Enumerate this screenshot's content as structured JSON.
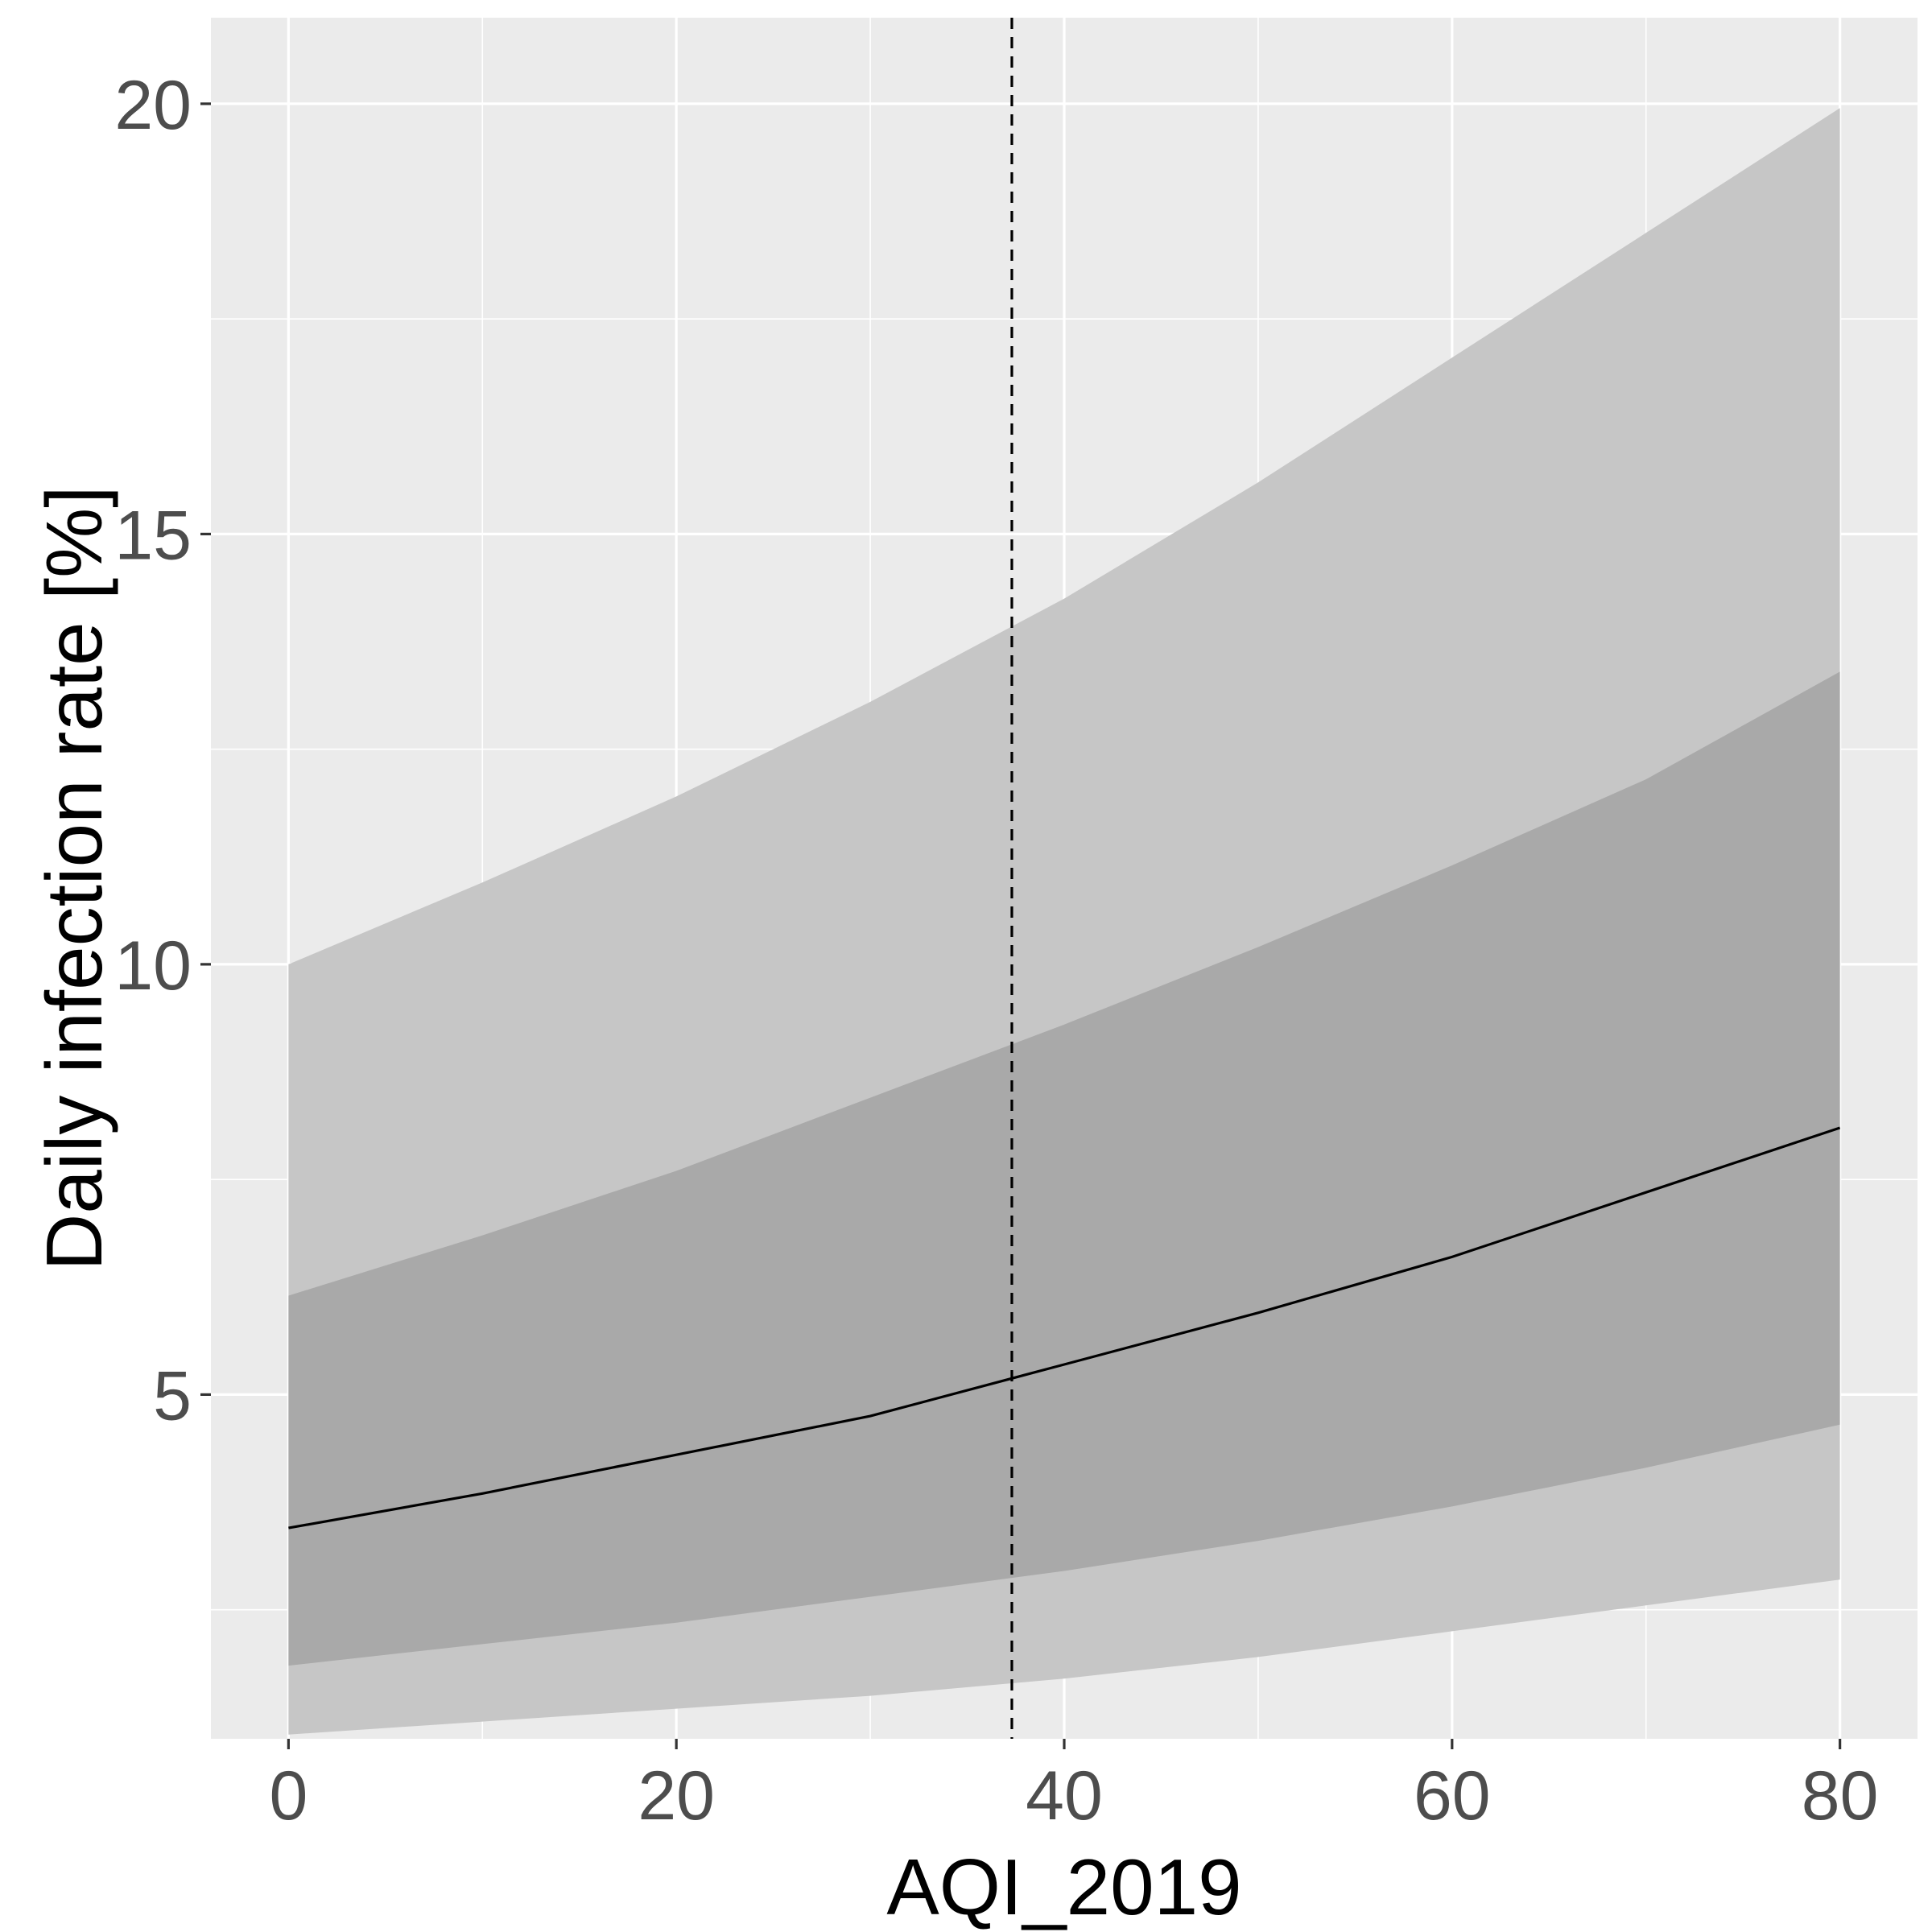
{
  "chart_data": {
    "type": "line",
    "title": "",
    "xlabel": "AQI_2019",
    "ylabel": "Daily infection rate [%]",
    "xlim": [
      -4,
      84
    ],
    "ylim": [
      1,
      21
    ],
    "x_ticks": [
      0,
      20,
      40,
      60,
      80
    ],
    "y_ticks": [
      5,
      10,
      15,
      20
    ],
    "x_minor": [
      10,
      30,
      50,
      70
    ],
    "y_minor": [
      2.5,
      7.5,
      12.5,
      17.5
    ],
    "grid": true,
    "reference_line": {
      "x": 37.3,
      "style": "dashed"
    },
    "x": [
      0,
      10,
      20,
      30,
      40,
      50,
      60,
      70,
      80
    ],
    "series": [
      {
        "role": "fit",
        "values": [
          3.45,
          3.85,
          4.3,
          4.75,
          5.35,
          5.95,
          6.6,
          7.35,
          8.1
        ]
      }
    ],
    "bands": [
      {
        "role": "outer",
        "lower": [
          1.05,
          1.2,
          1.35,
          1.5,
          1.7,
          1.95,
          2.25,
          2.55,
          2.85
        ],
        "upper": [
          10.0,
          10.95,
          11.95,
          13.05,
          14.25,
          15.6,
          17.05,
          18.5,
          19.95
        ]
      },
      {
        "role": "inner",
        "lower": [
          1.85,
          2.1,
          2.35,
          2.65,
          2.95,
          3.3,
          3.7,
          4.15,
          4.65
        ],
        "upper": [
          6.15,
          6.85,
          7.6,
          8.45,
          9.3,
          10.2,
          11.15,
          12.15,
          13.4
        ]
      }
    ],
    "colors": {
      "panel": "#ebebeb",
      "grid": "#ffffff",
      "outer_band": "#c6c6c6",
      "inner_band": "#a9a9a9",
      "line": "#000000"
    }
  }
}
